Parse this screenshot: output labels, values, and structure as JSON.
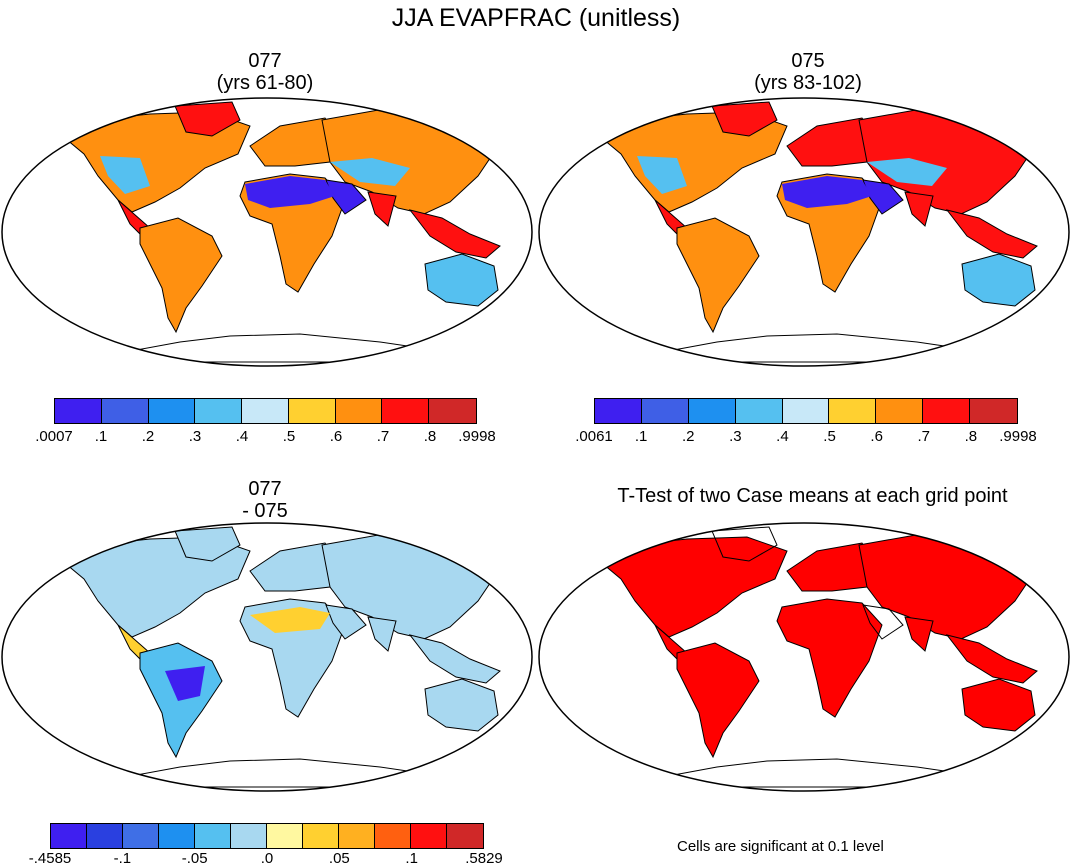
{
  "main_title": "JJA EVAPFRAC (unitless)",
  "panels": {
    "top_left": {
      "title_line1": "077",
      "title_line2": "(yrs 61-80)"
    },
    "top_right": {
      "title_line1": "075",
      "title_line2": "(yrs 83-102)"
    },
    "bottom_left": {
      "title_line1": "077",
      "title_line2": "- 075"
    },
    "bottom_right": {
      "title": "T-Test of two Case means at each grid point",
      "note": "Cells are significant at 0.1 level"
    }
  },
  "colorbars": {
    "top_left": {
      "colors": [
        "#3f1ff0",
        "#3f5fe6",
        "#1e90f0",
        "#55c0f0",
        "#c8e8f8",
        "#ffd030",
        "#ff9010",
        "#ff1010",
        "#d02828"
      ],
      "labels": [
        ".0007",
        ".1",
        ".2",
        ".3",
        ".4",
        ".5",
        ".6",
        ".7",
        ".8",
        ".9998"
      ]
    },
    "top_right": {
      "colors": [
        "#3f1ff0",
        "#3f5fe6",
        "#1e90f0",
        "#55c0f0",
        "#c8e8f8",
        "#ffd030",
        "#ff9010",
        "#ff1010",
        "#d02828"
      ],
      "labels": [
        ".0061",
        ".1",
        ".2",
        ".3",
        ".4",
        ".5",
        ".6",
        ".7",
        ".8",
        ".9998"
      ]
    },
    "bottom_left": {
      "colors": [
        "#3f1ff0",
        "#2a40e0",
        "#3f6fe6",
        "#1e90f0",
        "#55c0f0",
        "#a8d8f0",
        "#fff8a0",
        "#ffd030",
        "#ffb020",
        "#ff6010",
        "#ff1010",
        "#d02828"
      ],
      "labels": [
        "-.4585",
        "-.1",
        "-.05",
        ".0",
        ".05",
        ".1",
        ".5829"
      ]
    }
  },
  "map_colors": {
    "land_hot": "#ff1010",
    "land_warm": "#ff9010",
    "land_yellow": "#ffd030",
    "land_cool": "#55c0f0",
    "land_blue": "#3f1ff0",
    "diff_land": "#a8d8f0",
    "sig_red": "#ff0000",
    "coast": "#000000"
  }
}
